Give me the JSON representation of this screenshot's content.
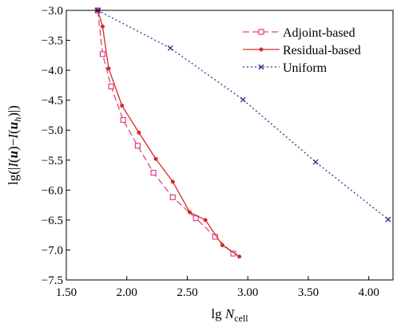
{
  "chart_data": {
    "type": "line",
    "xlabel_main": "lg ",
    "xlabel_var": "N",
    "xlabel_sub": "cell",
    "ylabel": "lg(|I(u)−I(u_h)|)",
    "ylabel_parts": [
      "lg(|",
      "I",
      "(",
      "u",
      ")−",
      "I",
      "(",
      "u",
      "h",
      ")|)"
    ],
    "xlim": [
      1.5,
      4.2
    ],
    "ylim": [
      -7.5,
      -3.0
    ],
    "x_ticks": [
      1.5,
      2.0,
      2.5,
      3.0,
      3.5,
      4.0
    ],
    "x_tick_labels": [
      "1.50",
      "2.00",
      "2.50",
      "3.00",
      "3.50",
      "4.00"
    ],
    "y_ticks": [
      -3.0,
      -3.5,
      -4.0,
      -4.5,
      -5.0,
      -5.5,
      -6.0,
      -6.5,
      -7.0,
      -7.5
    ],
    "y_tick_labels": [
      "−3.0",
      "−3.5",
      "−4.0",
      "−4.5",
      "−5.0",
      "−5.5",
      "−6.0",
      "−6.5",
      "−7.0",
      "−7.5"
    ],
    "legend_position": "top-right",
    "series": [
      {
        "name": "Adjoint-based",
        "color": "#e0408a",
        "line": "dashed",
        "marker": "open-square",
        "x": [
          1.76,
          1.8,
          1.87,
          1.97,
          2.09,
          2.22,
          2.38,
          2.57,
          2.73,
          2.88
        ],
        "y": [
          -3.0,
          -3.73,
          -4.27,
          -4.83,
          -5.26,
          -5.71,
          -6.12,
          -6.47,
          -6.78,
          -7.06
        ]
      },
      {
        "name": "Residual-based",
        "color": "#d42a2a",
        "line": "solid",
        "marker": "filled-circle",
        "x": [
          1.76,
          1.8,
          1.85,
          1.96,
          2.1,
          2.24,
          2.38,
          2.52,
          2.65,
          2.79,
          2.93
        ],
        "y": [
          -3.0,
          -3.27,
          -3.97,
          -4.59,
          -5.04,
          -5.48,
          -5.86,
          -6.37,
          -6.5,
          -6.92,
          -7.11
        ]
      },
      {
        "name": "Uniform",
        "color": "#2e2e8c",
        "line": "dotted",
        "marker": "cross",
        "x": [
          1.76,
          2.36,
          2.96,
          3.56,
          4.16
        ],
        "y": [
          -3.0,
          -3.63,
          -4.49,
          -5.53,
          -6.49
        ]
      }
    ]
  }
}
